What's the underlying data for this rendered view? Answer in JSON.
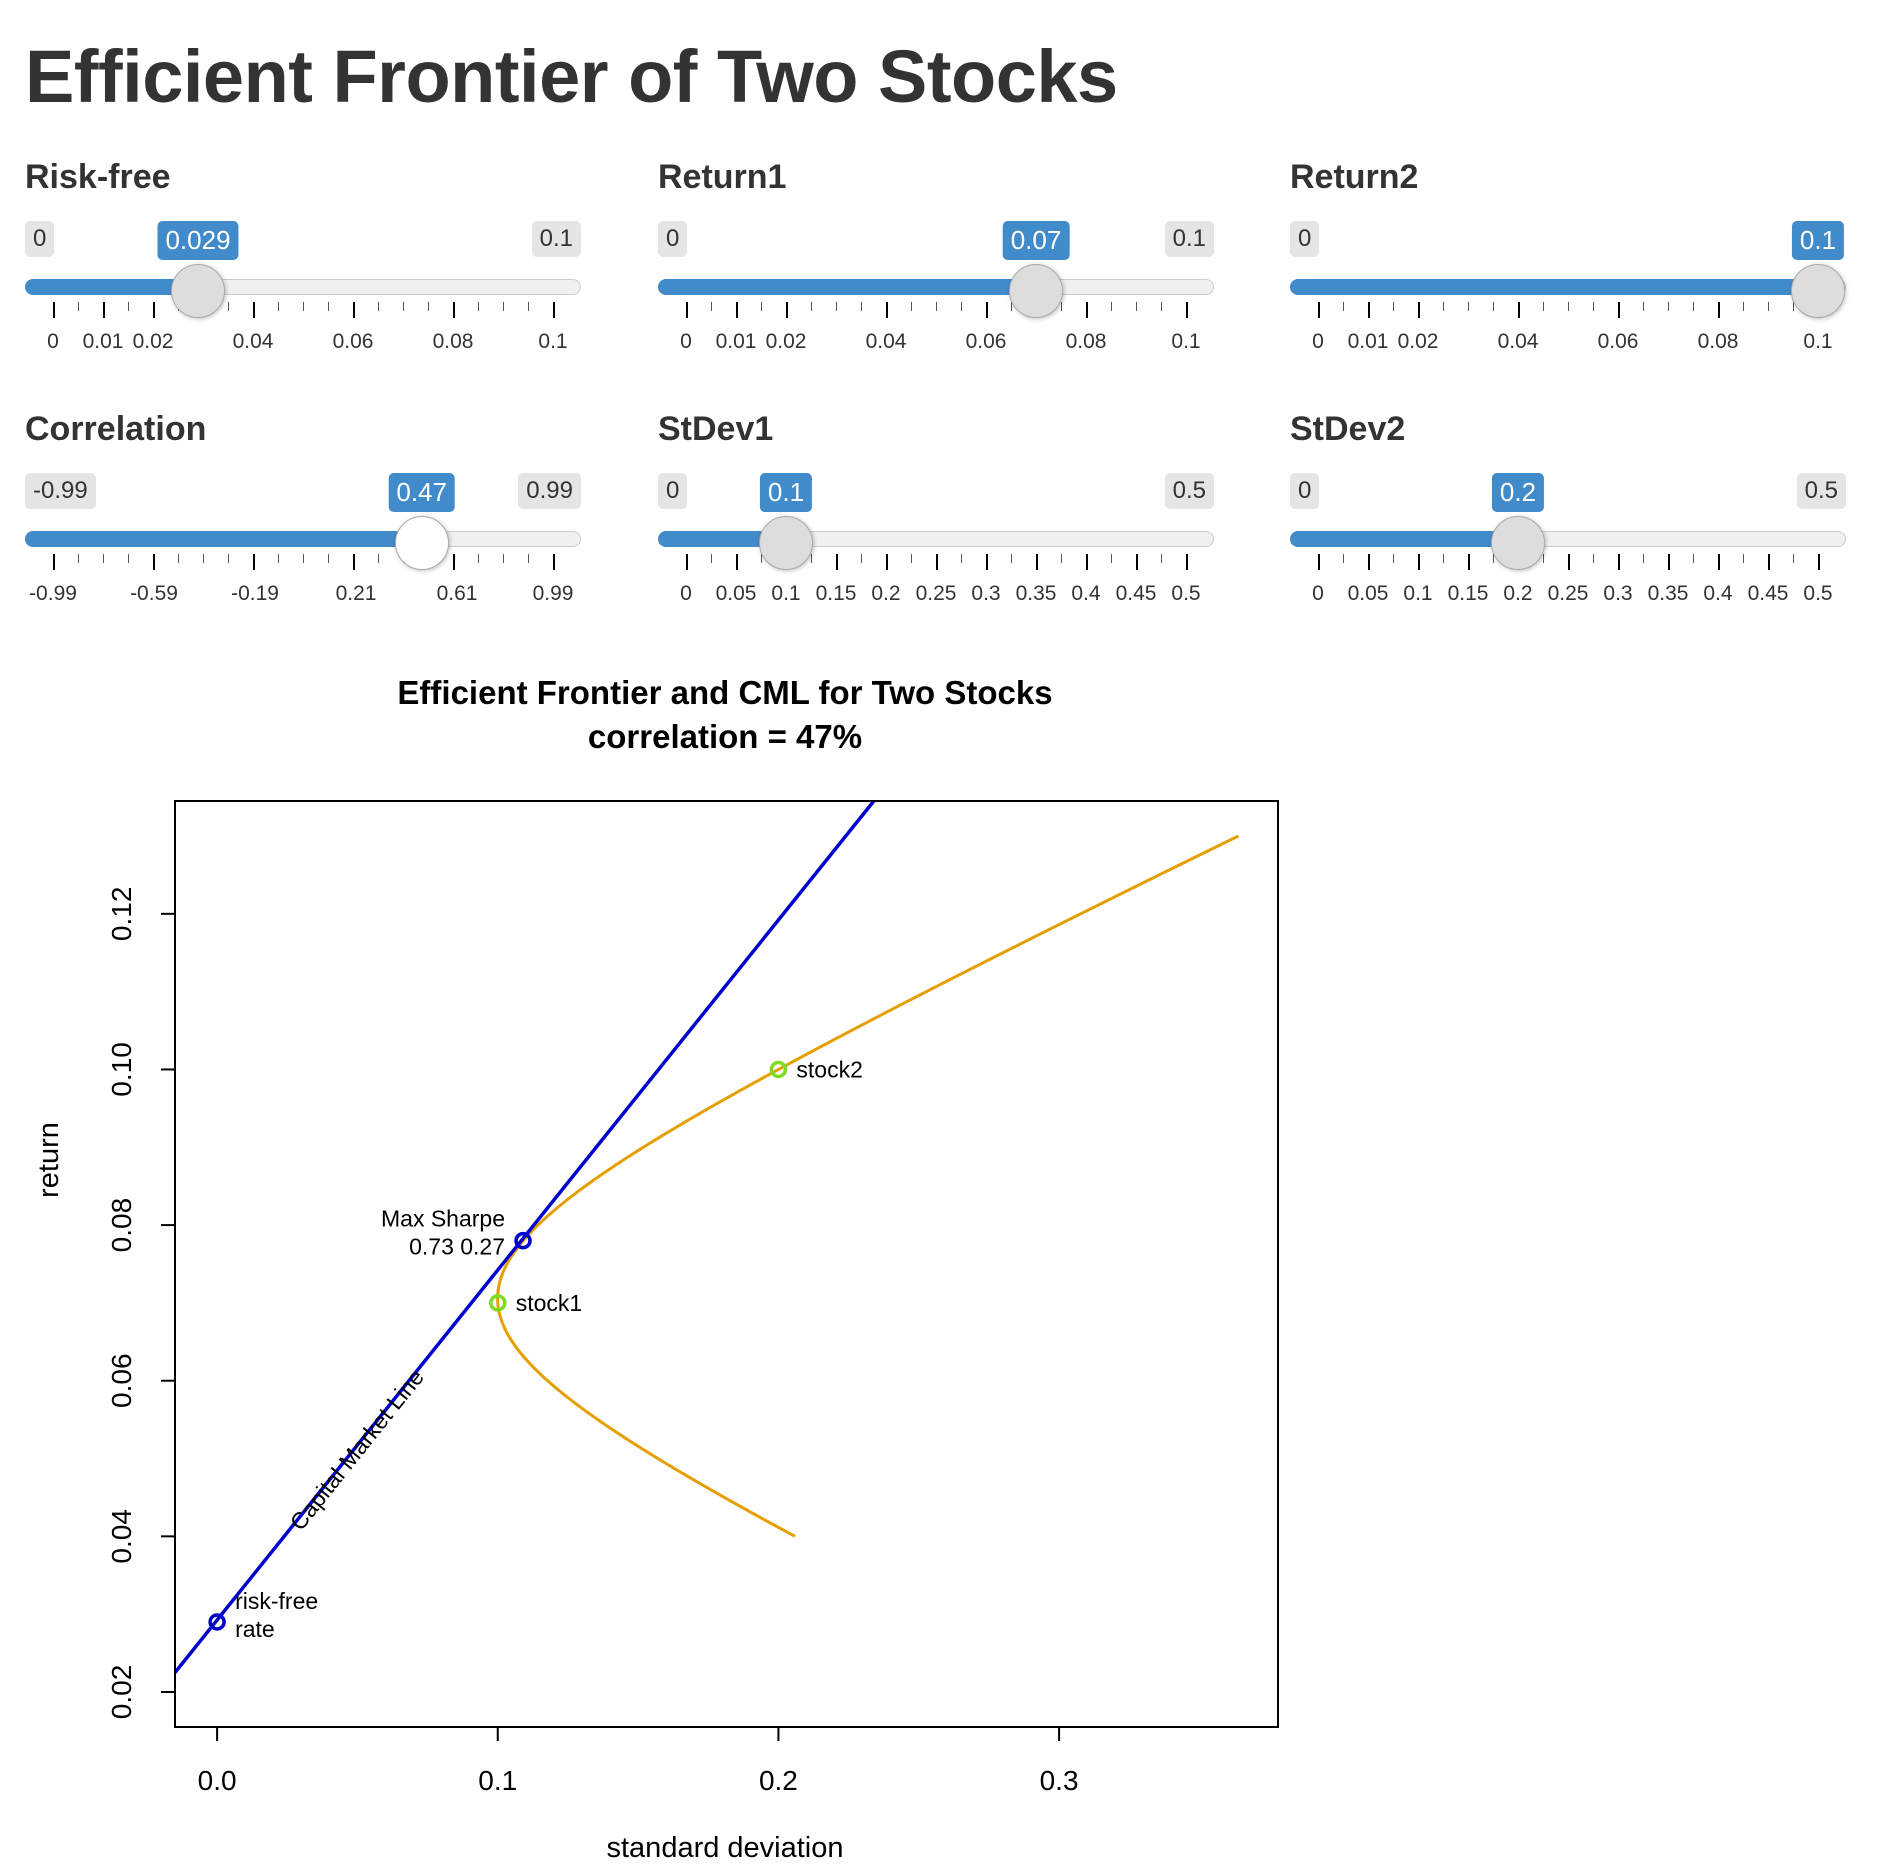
{
  "page_title": "Efficient Frontier of Two Stocks",
  "colors": {
    "slider_accent": "#428bca",
    "cml": "#0000cd",
    "frontier": "#e69f00",
    "stock_point": "#7ddc1f",
    "point_blue": "#0000cd"
  },
  "sliders": [
    {
      "id": "risk-free",
      "label": "Risk-free",
      "min": 0,
      "max": 0.1,
      "value": 0.029,
      "min_label": "0",
      "max_label": "0.1",
      "value_label": "0.029",
      "tick_labels": [
        "0",
        "0.01",
        "0.02",
        "0.04",
        "0.06",
        "0.08",
        "0.1"
      ],
      "tick_values": [
        0,
        0.01,
        0.02,
        0.04,
        0.06,
        0.08,
        0.1
      ]
    },
    {
      "id": "return1",
      "label": "Return1",
      "min": 0,
      "max": 0.1,
      "value": 0.07,
      "min_label": "0",
      "max_label": "0.1",
      "value_label": "0.07",
      "tick_labels": [
        "0",
        "0.01",
        "0.02",
        "0.04",
        "0.06",
        "0.08",
        "0.1"
      ],
      "tick_values": [
        0,
        0.01,
        0.02,
        0.04,
        0.06,
        0.08,
        0.1
      ]
    },
    {
      "id": "return2",
      "label": "Return2",
      "min": 0,
      "max": 0.1,
      "value": 0.1,
      "min_label": "0",
      "max_label": null,
      "value_label": "0.1",
      "tick_labels": [
        "0",
        "0.01",
        "0.02",
        "0.04",
        "0.06",
        "0.08",
        "0.1"
      ],
      "tick_values": [
        0,
        0.01,
        0.02,
        0.04,
        0.06,
        0.08,
        0.1
      ]
    },
    {
      "id": "correlation",
      "label": "Correlation",
      "min": -0.99,
      "max": 0.99,
      "value": 0.47,
      "min_label": "-0.99",
      "max_label": "0.99",
      "value_label": "0.47",
      "tick_labels": [
        "-0.99",
        "-0.59",
        "-0.19",
        "0.21",
        "0.61",
        "0.99"
      ],
      "tick_values": [
        -0.99,
        -0.59,
        -0.19,
        0.21,
        0.61,
        0.99
      ]
    },
    {
      "id": "stdev1",
      "label": "StDev1",
      "min": 0,
      "max": 0.5,
      "value": 0.1,
      "min_label": "0",
      "max_label": "0.5",
      "value_label": "0.1",
      "tick_labels": [
        "0",
        "0.05",
        "0.1",
        "0.15",
        "0.2",
        "0.25",
        "0.3",
        "0.35",
        "0.4",
        "0.45",
        "0.5"
      ],
      "tick_values": [
        0,
        0.05,
        0.1,
        0.15,
        0.2,
        0.25,
        0.3,
        0.35,
        0.4,
        0.45,
        0.5
      ]
    },
    {
      "id": "stdev2",
      "label": "StDev2",
      "min": 0,
      "max": 0.5,
      "value": 0.2,
      "min_label": "0",
      "max_label": "0.5",
      "value_label": "0.2",
      "tick_labels": [
        "0",
        "0.05",
        "0.1",
        "0.15",
        "0.2",
        "0.25",
        "0.3",
        "0.35",
        "0.4",
        "0.45",
        "0.5"
      ],
      "tick_values": [
        0,
        0.05,
        0.1,
        0.15,
        0.2,
        0.25,
        0.3,
        0.35,
        0.4,
        0.45,
        0.5
      ]
    }
  ],
  "chart_data": {
    "type": "line",
    "title": "Efficient Frontier and CML for Two Stocks",
    "subtitle": "correlation = 47%",
    "xlabel": "standard deviation",
    "ylabel": "return",
    "xlim": [
      -0.015,
      0.378
    ],
    "ylim": [
      0.0155,
      0.1345
    ],
    "x_ticks": [
      0.0,
      0.1,
      0.2,
      0.3
    ],
    "x_tick_labels": [
      "0.0",
      "0.1",
      "0.2",
      "0.3"
    ],
    "y_ticks": [
      0.02,
      0.04,
      0.06,
      0.08,
      0.1,
      0.12
    ],
    "y_tick_labels": [
      "0.02",
      "0.04",
      "0.06",
      "0.08",
      "0.10",
      "0.12"
    ],
    "frontier": {
      "mu1": 0.07,
      "mu2": 0.1,
      "sd1": 0.1,
      "sd2": 0.2,
      "rho": 0.47,
      "w_min": -1.0,
      "w_max": 2.0
    },
    "cml": {
      "points": [
        [
          -0.015,
          0.0225
        ],
        [
          0.234,
          0.1345
        ]
      ]
    },
    "points": [
      {
        "name": "stock1",
        "x": 0.1,
        "y": 0.07,
        "label": "stock1"
      },
      {
        "name": "stock2",
        "x": 0.2,
        "y": 0.1,
        "label": "stock2"
      },
      {
        "name": "max-sharpe",
        "x": 0.109,
        "y": 0.078,
        "label_line1": "Max Sharpe",
        "label_line2": "0.73 0.27"
      },
      {
        "name": "risk-free",
        "x": 0.0,
        "y": 0.029,
        "label_line1": "risk-free",
        "label_line2": "rate"
      }
    ],
    "cml_label": "Capital Market Line"
  }
}
